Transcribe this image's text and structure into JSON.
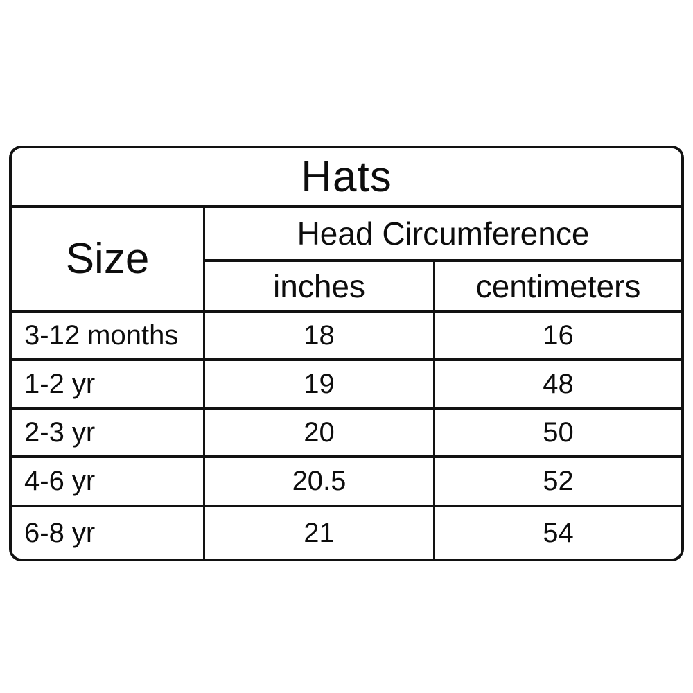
{
  "table": {
    "title": "Hats",
    "size_header": "Size",
    "group_header": "Head Circumference",
    "col_headers": {
      "inches": "inches",
      "centimeters": "centimeters"
    },
    "rows": [
      {
        "size": "3-12 months",
        "inches": "18",
        "centimeters": "16"
      },
      {
        "size": "1-2 yr",
        "inches": "19",
        "centimeters": "48"
      },
      {
        "size": "2-3 yr",
        "inches": "20",
        "centimeters": "50"
      },
      {
        "size": "4-6 yr",
        "inches": "20.5",
        "centimeters": "52"
      },
      {
        "size": "6-8 yr",
        "inches": "21",
        "centimeters": "54"
      }
    ]
  },
  "colors": {
    "border": "#121212",
    "text": "#0d0d0d",
    "background": "#ffffff"
  },
  "chart_data": {
    "type": "table",
    "title": "Hats",
    "columns": [
      "Size",
      "Head Circumference (inches)",
      "Head Circumference (centimeters)"
    ],
    "rows": [
      [
        "3-12 months",
        "18",
        "16"
      ],
      [
        "1-2 yr",
        "19",
        "48"
      ],
      [
        "2-3 yr",
        "20",
        "50"
      ],
      [
        "4-6 yr",
        "20.5",
        "52"
      ],
      [
        "6-8 yr",
        "21",
        "54"
      ]
    ]
  }
}
